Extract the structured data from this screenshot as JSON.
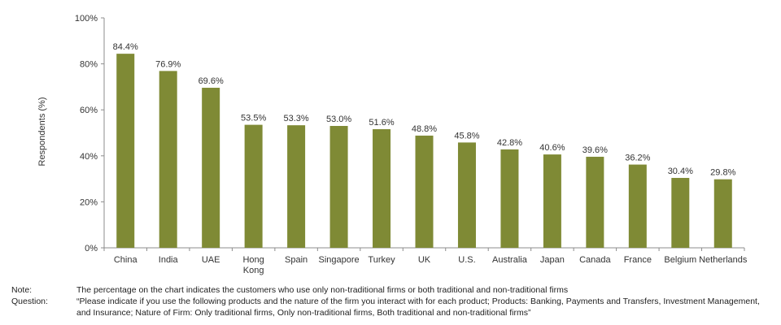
{
  "chart_data": {
    "type": "bar",
    "categories": [
      "China",
      "India",
      "UAE",
      "Hong Kong",
      "Spain",
      "Singapore",
      "Turkey",
      "UK",
      "U.S.",
      "Australia",
      "Japan",
      "Canada",
      "France",
      "Belgium",
      "Netherlands"
    ],
    "values": [
      84.4,
      76.9,
      69.6,
      53.5,
      53.3,
      53.0,
      51.6,
      48.8,
      45.8,
      42.8,
      40.6,
      39.6,
      36.2,
      30.4,
      29.8
    ],
    "data_labels": [
      "84.4%",
      "76.9%",
      "69.6%",
      "53.5%",
      "53.3%",
      "53.0%",
      "51.6%",
      "48.8%",
      "45.8%",
      "42.8%",
      "40.6%",
      "39.6%",
      "36.2%",
      "30.4%",
      "29.8%"
    ],
    "ylabel": "Respondents (%)",
    "ylim": [
      0,
      100
    ],
    "yticks": [
      0,
      20,
      40,
      60,
      80,
      100
    ],
    "ytick_labels": [
      "0%",
      "20%",
      "40%",
      "60%",
      "80%",
      "100%"
    ],
    "grid": false,
    "bar_color": "#7f8a35"
  },
  "notes": {
    "note_key": "Note:",
    "note_text": "The percentage on the chart indicates the customers who use only non-traditional firms or both traditional and non-traditional firms",
    "question_key": "Question:",
    "question_text": "“Please indicate if you use the following products and the nature of the firm you interact with for each product; Products: Banking, Payments and Transfers, Investment Management, and Insurance; Nature of Firm: Only traditional firms, Only non-traditional firms, Both traditional and non-traditional firms”"
  }
}
